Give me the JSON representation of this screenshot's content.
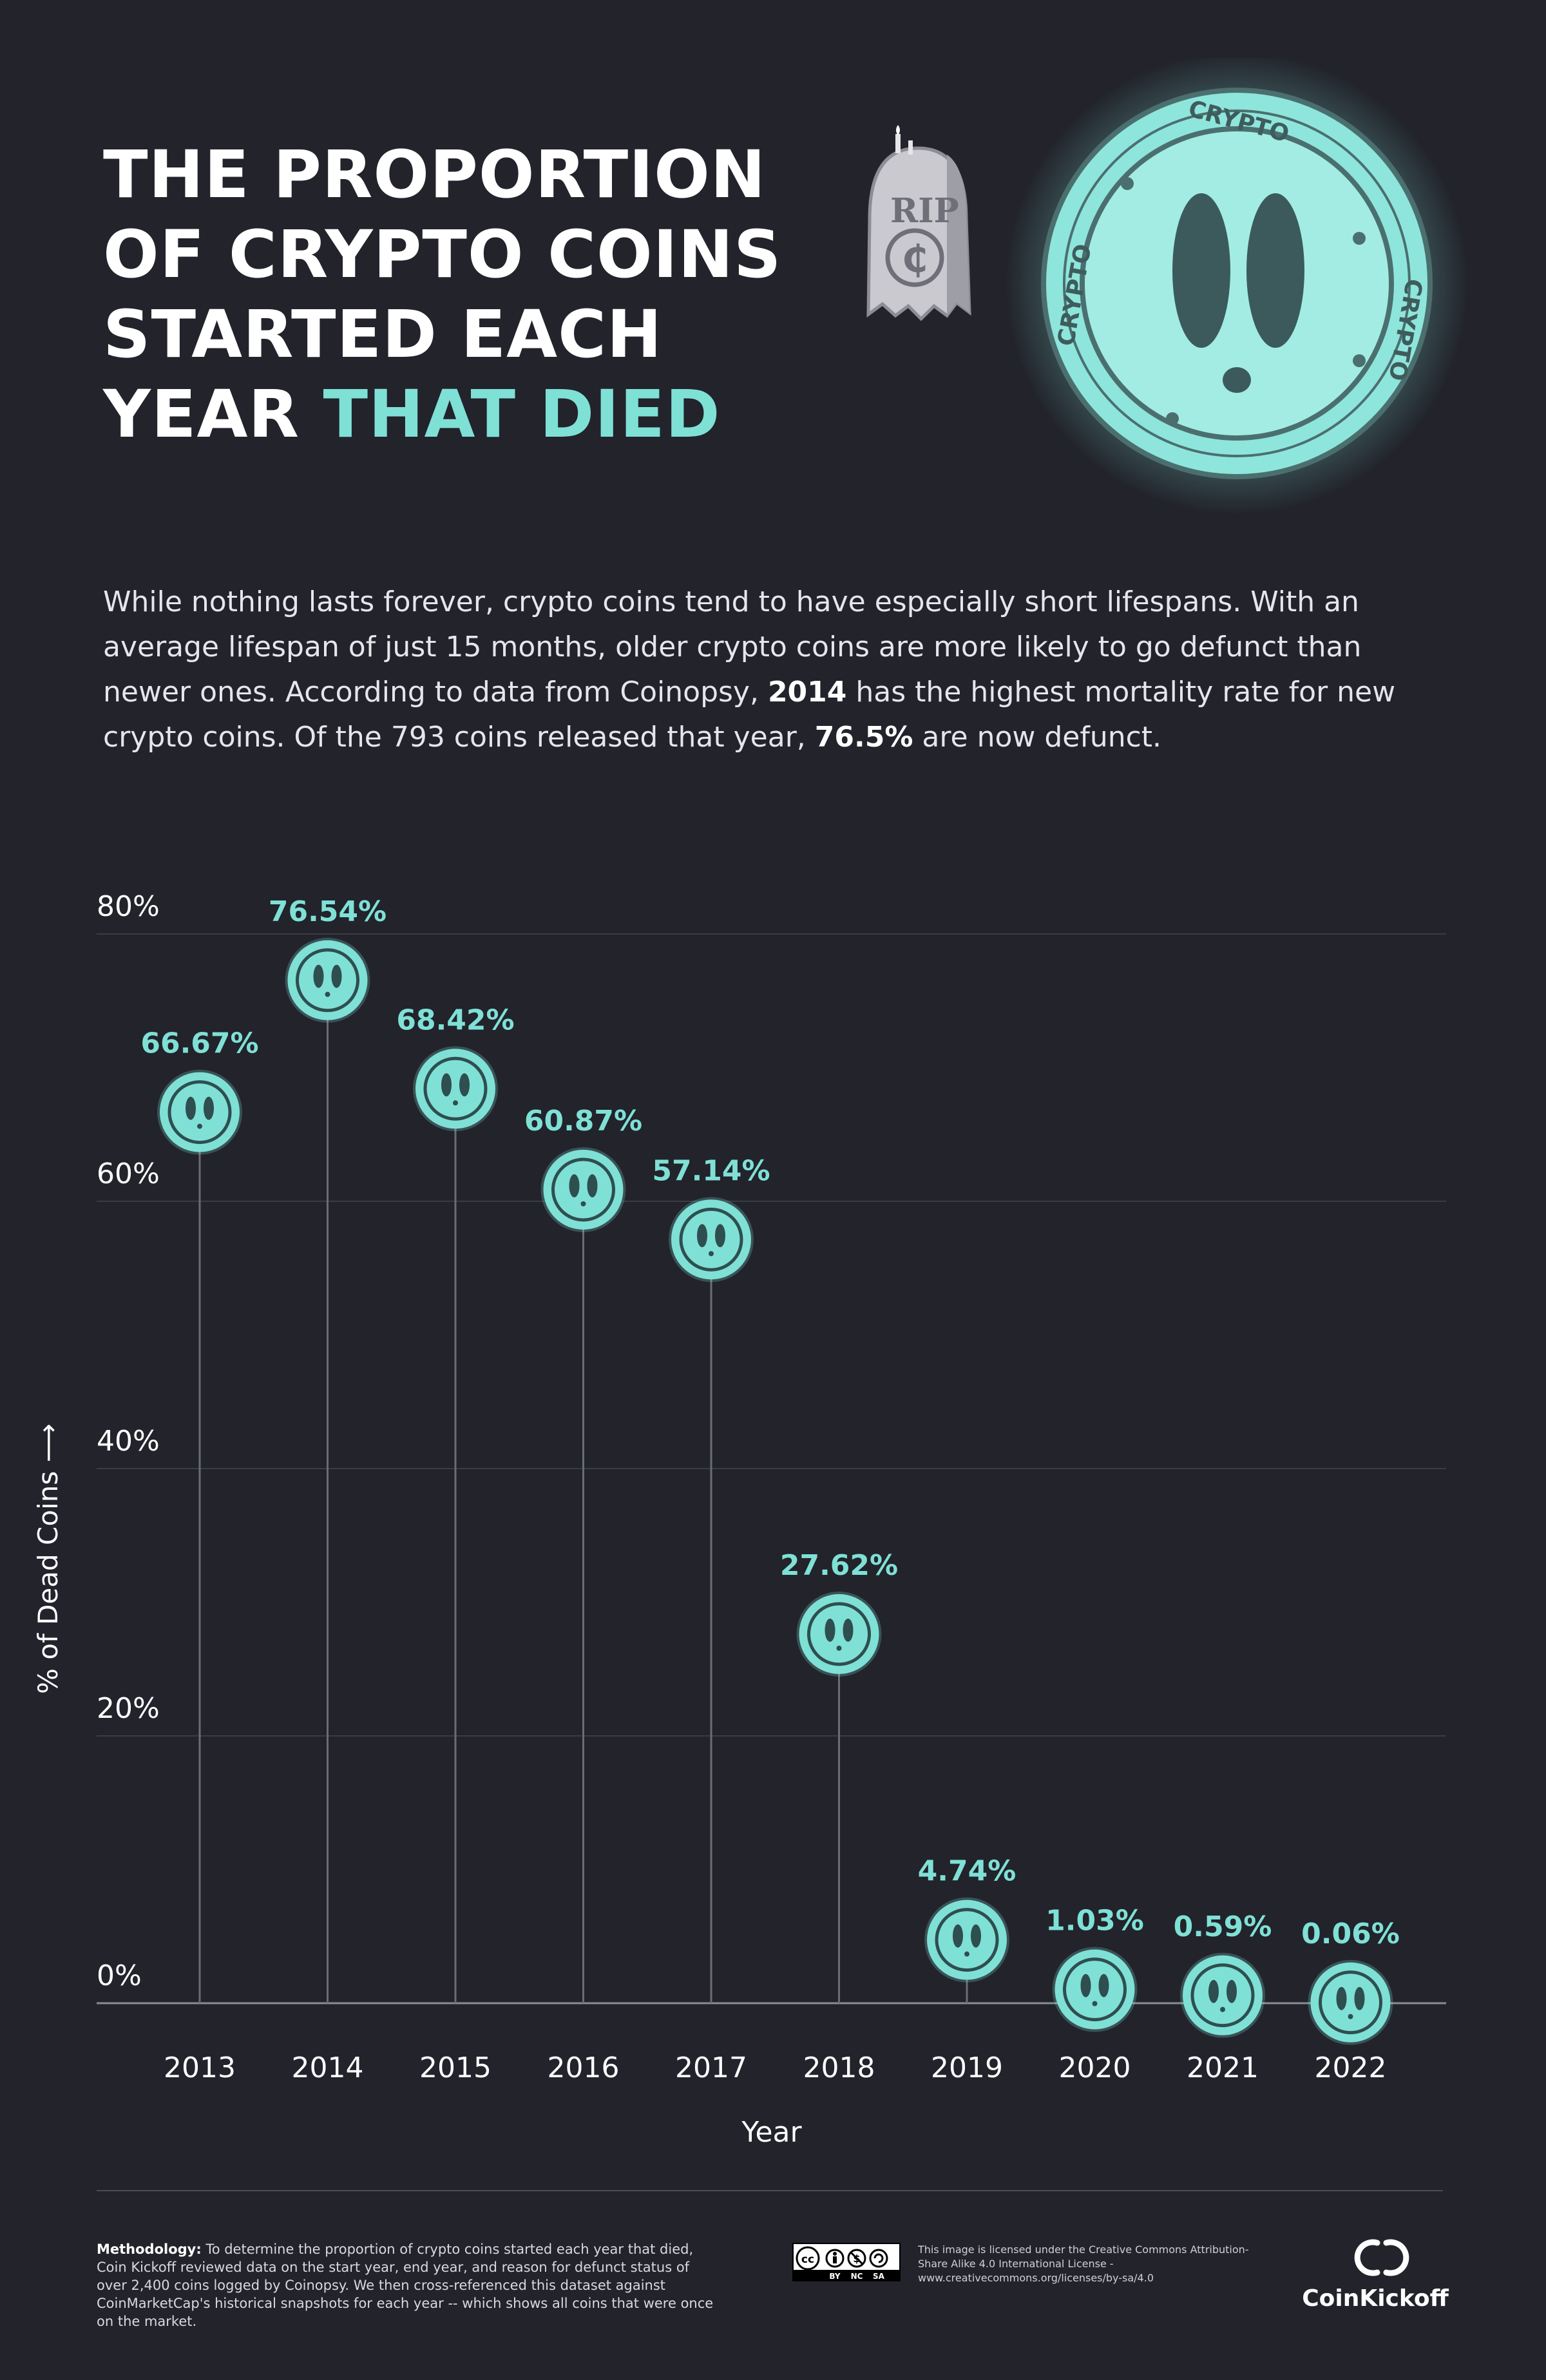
{
  "header": {
    "title_lines": [
      "THE PROPORTION",
      "OF CRYPTO COINS",
      "STARTED EACH"
    ],
    "title_last_plain": "YEAR ",
    "title_last_accent": "THAT DIED"
  },
  "hero": {
    "tombstone_text": "RIP",
    "tombstone_symbol": "₵",
    "coin_text": "CRYPTO"
  },
  "intro": {
    "part1": "While nothing lasts forever, crypto coins tend to have especially short lifespans. With an average lifespan of just 15 months, older crypto coins are more likely to go defunct than newer ones. According to data from Coinopsy, ",
    "bold1": "2014",
    "part2": " has the highest mortality rate for new crypto coins. Of the 793 coins released that year, ",
    "bold2": "76.5%",
    "part3": " are now defunct."
  },
  "chart_data": {
    "type": "scatter",
    "title": "",
    "xlabel": "Year",
    "ylabel": "% of Dead Coins",
    "ylabel_arrow": "⟶",
    "x": [
      "2013",
      "2014",
      "2015",
      "2016",
      "2017",
      "2018",
      "2019",
      "2020",
      "2021",
      "2022"
    ],
    "values": [
      66.67,
      76.54,
      68.42,
      60.87,
      57.14,
      27.62,
      4.74,
      1.03,
      0.59,
      0.06
    ],
    "data_labels": [
      "66.67%",
      "76.54%",
      "68.42%",
      "60.87%",
      "57.14%",
      "27.62%",
      "4.74%",
      "1.03%",
      "0.59%",
      "0.06%"
    ],
    "yticks": [
      0,
      20,
      40,
      60,
      80
    ],
    "ytick_labels": [
      "0%",
      "20%",
      "40%",
      "60%",
      "80%"
    ],
    "ylim": [
      0,
      80
    ],
    "grid": true,
    "marker": "ghost-coin-icon",
    "colors": {
      "accent": "#7fe0d6",
      "grid": "#3a3c46",
      "stem": "#6a6c78",
      "background": "#22232b"
    }
  },
  "footer": {
    "methodology_label": "Methodology:",
    "methodology_text": " To determine the proportion of crypto coins started each year that died, Coin Kickoff reviewed data on the start year, end year, and reason for defunct status of over 2,400 coins logged by Coinopsy. We then cross-referenced this dataset against CoinMarketCap's historical snapshots for each year -- which shows all coins that were once on the market.",
    "license_text": "This image is licensed under the Creative Commons Attribution-Share Alike 4.0 International License - www.creativecommons.org/licenses/by-sa/4.0",
    "cc_labels": [
      "cc",
      "BY",
      "NC",
      "SA"
    ],
    "brand": "CoinKickoff"
  }
}
